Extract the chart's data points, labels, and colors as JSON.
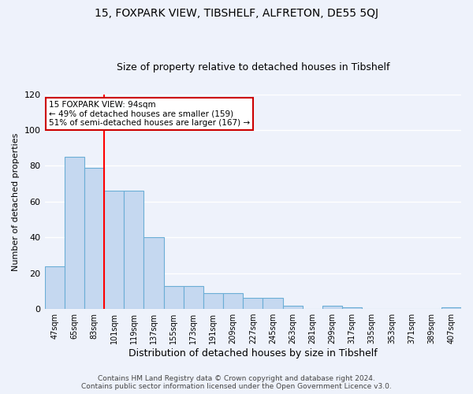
{
  "title": "15, FOXPARK VIEW, TIBSHELF, ALFRETON, DE55 5QJ",
  "subtitle": "Size of property relative to detached houses in Tibshelf",
  "xlabel": "Distribution of detached houses by size in Tibshelf",
  "ylabel": "Number of detached properties",
  "bin_labels": [
    "47sqm",
    "65sqm",
    "83sqm",
    "101sqm",
    "119sqm",
    "137sqm",
    "155sqm",
    "173sqm",
    "191sqm",
    "209sqm",
    "227sqm",
    "245sqm",
    "263sqm",
    "281sqm",
    "299sqm",
    "317sqm",
    "335sqm",
    "353sqm",
    "371sqm",
    "389sqm",
    "407sqm"
  ],
  "bin_values": [
    24,
    85,
    79,
    66,
    66,
    40,
    13,
    13,
    9,
    9,
    6,
    6,
    2,
    0,
    2,
    1,
    0,
    0,
    0,
    0,
    1
  ],
  "bar_color": "#c5d8f0",
  "bar_edge_color": "#6baed6",
  "ylim": [
    0,
    120
  ],
  "yticks": [
    0,
    20,
    40,
    60,
    80,
    100,
    120
  ],
  "red_line_x": 2.5,
  "annotation_text": "15 FOXPARK VIEW: 94sqm\n← 49% of detached houses are smaller (159)\n51% of semi-detached houses are larger (167) →",
  "annotation_box_color": "#ffffff",
  "annotation_box_edge": "#cc0000",
  "footer_line1": "Contains HM Land Registry data © Crown copyright and database right 2024.",
  "footer_line2": "Contains public sector information licensed under the Open Government Licence v3.0.",
  "bg_color": "#eef2fb",
  "grid_color": "#ffffff",
  "title_fontsize": 10,
  "subtitle_fontsize": 9
}
